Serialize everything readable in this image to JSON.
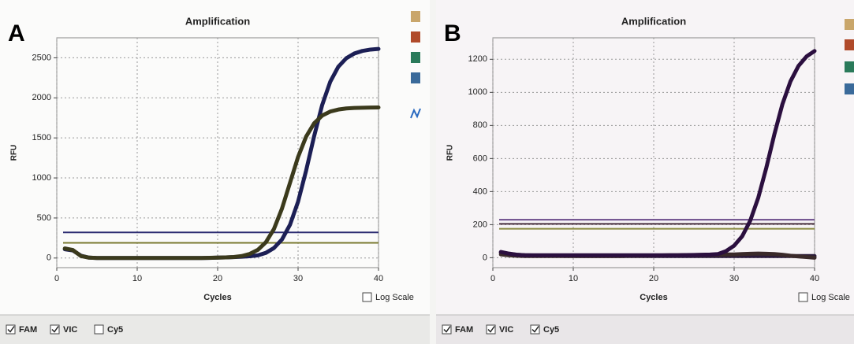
{
  "chart_data": [
    {
      "type": "line",
      "panel_label": "A",
      "title": "Amplification",
      "x_label": "Cycles",
      "y_label": "RFU",
      "x": [
        1,
        2,
        3,
        4,
        5,
        6,
        7,
        8,
        9,
        10,
        11,
        12,
        13,
        14,
        15,
        16,
        17,
        18,
        19,
        20,
        21,
        22,
        23,
        24,
        25,
        26,
        27,
        28,
        29,
        30,
        31,
        32,
        33,
        34,
        35,
        36,
        37,
        38,
        39,
        40
      ],
      "xlim": [
        0,
        40
      ],
      "xticks": [
        0,
        10,
        20,
        30,
        40
      ],
      "ylim": [
        -120,
        2750
      ],
      "yticks": [
        0,
        500,
        1000,
        1500,
        2000,
        2500
      ],
      "grid": true,
      "log_scale_label": "Log Scale",
      "log_scale": false,
      "series": [
        {
          "name": "FAM",
          "checked": true,
          "color": "#1c1f55",
          "threshold": 320,
          "threshold_color": "#2a2a70",
          "values": [
            110,
            95,
            30,
            5,
            0,
            0,
            0,
            0,
            0,
            0,
            0,
            0,
            0,
            0,
            0,
            0,
            0,
            0,
            2,
            5,
            8,
            12,
            16,
            22,
            34,
            65,
            125,
            232,
            416,
            704,
            1092,
            1523,
            1912,
            2202,
            2388,
            2495,
            2554,
            2586,
            2603,
            2611
          ]
        },
        {
          "name": "VIC",
          "checked": true,
          "color": "#3b3a1c",
          "threshold": 190,
          "threshold_color": "#7a7a30",
          "values": [
            120,
            100,
            25,
            5,
            0,
            0,
            0,
            0,
            0,
            0,
            0,
            0,
            0,
            0,
            0,
            0,
            0,
            0,
            3,
            5,
            8,
            13,
            25,
            52,
            102,
            198,
            362,
            618,
            940,
            1262,
            1516,
            1683,
            1779,
            1829,
            1854,
            1868,
            1874,
            1877,
            1879,
            1880
          ]
        },
        {
          "name": "Cy5",
          "checked": false
        }
      ]
    },
    {
      "type": "line",
      "panel_label": "B",
      "title": "Amplification",
      "x_label": "Cycles",
      "y_label": "RFU",
      "x": [
        1,
        2,
        3,
        4,
        5,
        6,
        7,
        8,
        9,
        10,
        11,
        12,
        13,
        14,
        15,
        16,
        17,
        18,
        19,
        20,
        21,
        22,
        23,
        24,
        25,
        26,
        27,
        28,
        29,
        30,
        31,
        32,
        33,
        34,
        35,
        36,
        37,
        38,
        39,
        40
      ],
      "xlim": [
        0,
        40
      ],
      "xticks": [
        0,
        10,
        20,
        30,
        40
      ],
      "ylim": [
        -60,
        1330
      ],
      "yticks": [
        0,
        200,
        400,
        600,
        800,
        1000,
        1200
      ],
      "grid": true,
      "log_scale_label": "Log Scale",
      "log_scale": false,
      "series": [
        {
          "name": "FAM",
          "checked": true,
          "color": "#2a1a3a",
          "threshold": 230,
          "threshold_color": "#6a4a8a",
          "values": [
            30,
            22,
            18,
            15,
            14,
            12,
            12,
            12,
            11,
            11,
            10,
            10,
            10,
            10,
            10,
            10,
            10,
            10,
            10,
            10,
            10,
            10,
            10,
            10,
            10,
            10,
            10,
            10,
            10,
            10,
            10,
            10,
            10,
            10,
            10,
            10,
            10,
            10,
            10,
            10
          ]
        },
        {
          "name": "VIC",
          "checked": true,
          "color": "#3a2a2a",
          "threshold": 205,
          "threshold_color": "#4a3040",
          "values": [
            20,
            15,
            12,
            10,
            10,
            10,
            10,
            10,
            10,
            10,
            10,
            10,
            10,
            10,
            10,
            10,
            12,
            12,
            12,
            14,
            14,
            15,
            15,
            16,
            16,
            17,
            18,
            18,
            20,
            20,
            22,
            24,
            25,
            24,
            22,
            18,
            12,
            8,
            4,
            0
          ]
        },
        {
          "name": "Cy5",
          "checked": true,
          "color": "#2b0f3f",
          "threshold": 175,
          "threshold_color": "#8a8a40",
          "values": [
            35,
            25,
            18,
            15,
            15,
            15,
            15,
            15,
            15,
            15,
            15,
            15,
            15,
            15,
            15,
            15,
            15,
            15,
            15,
            15,
            15,
            15,
            15,
            16,
            17,
            18,
            19,
            22,
            40,
            73,
            130,
            224,
            363,
            544,
            746,
            928,
            1066,
            1160,
            1217,
            1250
          ]
        }
      ]
    }
  ]
}
